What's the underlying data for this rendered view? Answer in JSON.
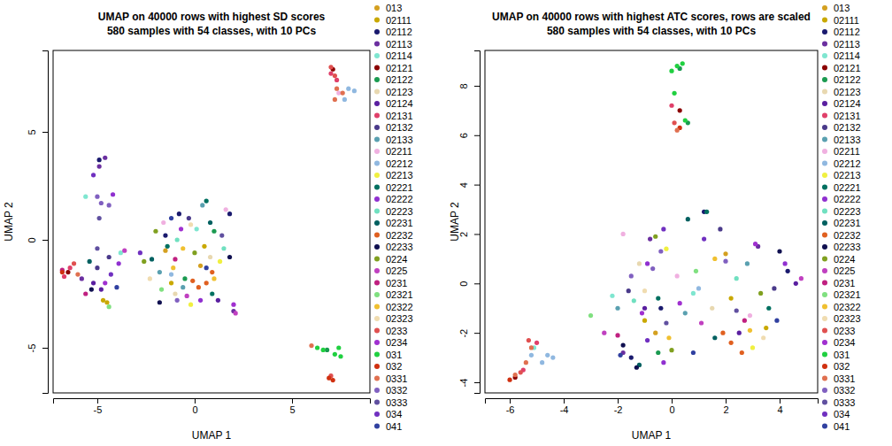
{
  "chart_data": [
    {
      "type": "scatter",
      "title": "UMAP on 40000 rows with highest SD scores",
      "subtitle": "580 samples with 54 classes, with 10 PCs",
      "x_label": "UMAP 1",
      "y_label": "UMAP 2",
      "xlim": [
        -7.27,
        9.0
      ],
      "ylim": [
        -7.09,
        8.77
      ],
      "xticks": [
        -5,
        0,
        5
      ],
      "yticks": [
        -5,
        0,
        5
      ],
      "series": [
        {
          "name": "013",
          "color": "#d4a020",
          "x": [
            -1.5,
            0.3
          ],
          "y": [
            -0.5,
            -1.2
          ]
        },
        {
          "name": "02111",
          "color": "#c9a800",
          "x": [
            -4.7,
            -4.5,
            -1.2,
            0.5
          ],
          "y": [
            -2.8,
            -2.9,
            -2.0,
            -0.3
          ]
        },
        {
          "name": "02112",
          "color": "#1a1a6e",
          "x": [
            -0.8,
            1.8,
            -1.5,
            -4.9
          ],
          "y": [
            1.2,
            1.2,
            0.2,
            3.7
          ]
        },
        {
          "name": "02113",
          "color": "#6b2fa0",
          "x": [
            -4.6,
            -4.9,
            2.0,
            -5.8
          ],
          "y": [
            3.8,
            3.4,
            -3.3,
            -1.8
          ]
        },
        {
          "name": "02114",
          "color": "#7fe6d0",
          "x": [
            -5.6,
            -3.8,
            0.1
          ],
          "y": [
            2.0,
            -0.6,
            0.5
          ]
        },
        {
          "name": "02121",
          "color": "#8b0000",
          "x": [
            7.1,
            -6.5
          ],
          "y": [
            7.9,
            -1.5
          ]
        },
        {
          "name": "02122",
          "color": "#1a9a50",
          "x": [
            6.8,
            -0.5,
            1.0
          ],
          "y": [
            -5.1,
            -1.8,
            0.4
          ]
        },
        {
          "name": "02123",
          "color": "#e8d8b0",
          "x": [
            0.8,
            -1.0
          ],
          "y": [
            -0.8,
            -2.5
          ]
        },
        {
          "name": "02124",
          "color": "#5a1fa0",
          "x": [
            -5.2,
            -4.8,
            1.2
          ],
          "y": [
            -2.0,
            -2.3,
            -2.8
          ]
        },
        {
          "name": "02131",
          "color": "#e0406a",
          "x": [
            7.0,
            7.3,
            -6.4,
            -6.7
          ],
          "y": [
            7.7,
            7.4,
            -1.3,
            -1.7
          ]
        },
        {
          "name": "02132",
          "color": "#4a3a8a",
          "x": [
            -4.4,
            -0.3,
            -5.0
          ],
          "y": [
            -0.8,
            1.0,
            -1.3
          ]
        },
        {
          "name": "02133",
          "color": "#5aa0b0",
          "x": [
            -1.8,
            -0.6,
            0.4
          ],
          "y": [
            -1.5,
            -2.2,
            1.6
          ]
        },
        {
          "name": "02211",
          "color": "#f0b0e0",
          "x": [
            -1.6,
            1.6,
            7.4
          ],
          "y": [
            0.8,
            1.4,
            6.8
          ]
        },
        {
          "name": "02212",
          "color": "#90b8e0",
          "x": [
            7.9,
            8.2,
            7.7,
            -1.2
          ],
          "y": [
            7.0,
            6.9,
            6.5,
            -1.6
          ]
        },
        {
          "name": "02213",
          "color": "#f0f040",
          "x": [
            -0.2,
            1.3
          ],
          "y": [
            -3.0,
            -1.0
          ]
        },
        {
          "name": "02221",
          "color": "#007060",
          "x": [
            -1.4,
            0.6,
            0.9
          ],
          "y": [
            -0.3,
            1.8,
            -2.5
          ]
        },
        {
          "name": "02222",
          "color": "#9030d0",
          "x": [
            -3.9,
            -4.2,
            0.3
          ],
          "y": [
            -1.1,
            2.1,
            -2.8
          ]
        },
        {
          "name": "02223",
          "color": "#70e0c0",
          "x": [
            -0.9,
            1.5
          ],
          "y": [
            0.0,
            -0.4
          ]
        },
        {
          "name": "02231",
          "color": "#006060",
          "x": [
            -2.2,
            0.8,
            -5.4
          ],
          "y": [
            -0.9,
            0.8,
            -1.0
          ]
        },
        {
          "name": "02232",
          "color": "#e06020",
          "x": [
            0.2,
            0.6,
            -0.1,
            0.9
          ],
          "y": [
            -2.2,
            -2.0,
            -1.9,
            -1.5
          ]
        },
        {
          "name": "02233",
          "color": "#101050",
          "x": [
            -1.8,
            1.8,
            -5.3
          ],
          "y": [
            -2.9,
            -0.8,
            -2.3
          ]
        },
        {
          "name": "0224",
          "color": "#80a020",
          "x": [
            -2.0,
            0.0,
            -2.6
          ],
          "y": [
            0.4,
            -0.6,
            -1.0
          ]
        },
        {
          "name": "0225",
          "color": "#c040c0",
          "x": [
            -0.4,
            2.1,
            -3.6
          ],
          "y": [
            -2.6,
            -3.4,
            -0.5
          ]
        },
        {
          "name": "0231",
          "color": "#c02080",
          "x": [
            -6.8,
            -1.0,
            -5.6
          ],
          "y": [
            -1.4,
            -0.9,
            -2.5
          ]
        },
        {
          "name": "02321",
          "color": "#80e080",
          "x": [
            -1.7,
            -4.4
          ],
          "y": [
            -2.3,
            -3.1
          ]
        },
        {
          "name": "02322",
          "color": "#f0c030",
          "x": [
            -1.1,
            -0.6,
            1.0
          ],
          "y": [
            -1.3,
            -0.4,
            -1.8
          ]
        },
        {
          "name": "02323",
          "color": "#f0dcb0",
          "x": [
            -0.2,
            -2.3
          ],
          "y": [
            0.7,
            -1.8
          ]
        },
        {
          "name": "0233",
          "color": "#e05050",
          "x": [
            7.0,
            7.2,
            -6.2,
            7.0
          ],
          "y": [
            8.0,
            7.6,
            -1.1,
            -6.3
          ]
        },
        {
          "name": "0234",
          "color": "#a030d0",
          "x": [
            -0.7,
            2.0,
            -4.6
          ],
          "y": [
            0.5,
            -3.0,
            -2.0
          ]
        },
        {
          "name": "031",
          "color": "#20d040",
          "x": [
            7.2,
            7.5,
            6.3,
            6.6,
            7.4
          ],
          "y": [
            -5.3,
            -5.4,
            -5.0,
            -5.1,
            -5.0
          ]
        },
        {
          "name": "032",
          "color": "#d03010",
          "x": [
            7.1,
            6.9,
            -6.8
          ],
          "y": [
            -6.5,
            -6.4,
            -1.5
          ]
        },
        {
          "name": "0331",
          "color": "#e07050",
          "x": [
            7.3,
            7.6,
            7.2,
            6.0,
            -6.0
          ],
          "y": [
            7.0,
            6.8,
            6.5,
            -4.9,
            -1.6
          ]
        },
        {
          "name": "0332",
          "color": "#8060c0",
          "x": [
            -4.8,
            -4.4,
            -5.0,
            -0.9
          ],
          "y": [
            1.7,
            1.6,
            2.0,
            -2.8
          ]
        },
        {
          "name": "0333",
          "color": "#6050a0",
          "x": [
            -4.9,
            -5.0,
            1.4
          ],
          "y": [
            1.0,
            -0.4,
            0.2
          ]
        },
        {
          "name": "034",
          "color": "#7030c0",
          "x": [
            -5.2,
            -4.3,
            -2.8
          ],
          "y": [
            3.0,
            -1.6,
            -0.6
          ]
        },
        {
          "name": "041",
          "color": "#3040a0",
          "x": [
            -1.2,
            0.6,
            -4.0
          ],
          "y": [
            1.0,
            -1.3,
            -2.2
          ]
        }
      ]
    },
    {
      "type": "scatter",
      "title": "UMAP on 40000 rows with highest ATC scores, rows are scaled",
      "subtitle": "580 samples with 54 classes, with 10 PCs",
      "x_label": "UMAP 1",
      "y_label": "UMAP 2",
      "xlim": [
        -6.92,
        5.41
      ],
      "ylim": [
        -4.43,
        9.43
      ],
      "xticks": [
        -6,
        -4,
        -2,
        0,
        2,
        4
      ],
      "yticks": [
        -4,
        -2,
        0,
        2,
        4,
        6,
        8
      ],
      "series": [
        {
          "name": "013",
          "color": "#d4a020",
          "x": [
            2.0,
            -0.6
          ],
          "y": [
            1.2,
            -2.0
          ]
        },
        {
          "name": "02111",
          "color": "#c9a800",
          "x": [
            3.5,
            -1.0,
            2.2
          ],
          "y": [
            -1.8,
            -1.5,
            -0.6
          ]
        },
        {
          "name": "02112",
          "color": "#1a1a6e",
          "x": [
            -1.5,
            1.2,
            4.3,
            -0.4
          ],
          "y": [
            -3.0,
            2.9,
            0.5,
            -1.0
          ]
        },
        {
          "name": "02113",
          "color": "#6b2fa0",
          "x": [
            -0.8,
            3.2,
            -1.8
          ],
          "y": [
            1.8,
            1.5,
            -2.8
          ]
        },
        {
          "name": "02114",
          "color": "#7fe6d0",
          "x": [
            -2.2,
            0.8,
            -5.1
          ],
          "y": [
            -0.5,
            -0.4,
            -2.6
          ]
        },
        {
          "name": "02121",
          "color": "#8b0000",
          "x": [
            0.3,
            -5.8
          ],
          "y": [
            7.0,
            -3.8
          ]
        },
        {
          "name": "02122",
          "color": "#1a9a50",
          "x": [
            0.3,
            0.6,
            -0.5
          ],
          "y": [
            8.7,
            6.5,
            -2.8
          ]
        },
        {
          "name": "02123",
          "color": "#e8d8b0",
          "x": [
            1.5,
            -1.2
          ],
          "y": [
            -1.0,
            0.8
          ]
        },
        {
          "name": "02124",
          "color": "#5a1fa0",
          "x": [
            -1.0,
            2.5,
            4.6
          ],
          "y": [
            -1.0,
            -2.0,
            0.0
          ]
        },
        {
          "name": "02131",
          "color": "#e0406a",
          "x": [
            0.0,
            -5.5,
            -5.0
          ],
          "y": [
            7.2,
            -3.5,
            -2.4
          ]
        },
        {
          "name": "02132",
          "color": "#4a3a8a",
          "x": [
            -1.6,
            1.8,
            3.8
          ],
          "y": [
            -0.3,
            2.2,
            -0.2
          ]
        },
        {
          "name": "02133",
          "color": "#5aa0b0",
          "x": [
            -2.0,
            0.5,
            2.8
          ],
          "y": [
            -1.0,
            -1.2,
            0.8
          ]
        },
        {
          "name": "02211",
          "color": "#f0b0e0",
          "x": [
            -1.8,
            2.9,
            0.2
          ],
          "y": [
            2.0,
            -1.3,
            0.3
          ]
        },
        {
          "name": "02212",
          "color": "#90b8e0",
          "x": [
            -4.4,
            -4.6,
            -4.8,
            -5.2,
            1.0
          ],
          "y": [
            -3.0,
            -2.9,
            -3.2,
            -2.9,
            -0.2
          ]
        },
        {
          "name": "02213",
          "color": "#f0f040",
          "x": [
            3.0,
            -0.2
          ],
          "y": [
            -2.6,
            1.4
          ]
        },
        {
          "name": "02221",
          "color": "#007060",
          "x": [
            1.3,
            -0.5,
            3.6
          ],
          "y": [
            2.9,
            -0.6,
            -1.0
          ]
        },
        {
          "name": "02222",
          "color": "#9030d0",
          "x": [
            -0.9,
            4.2,
            -0.3
          ],
          "y": [
            0.8,
            0.8,
            -3.2
          ]
        },
        {
          "name": "02223",
          "color": "#70e0c0",
          "x": [
            -1.4,
            2.4
          ],
          "y": [
            -0.7,
            0.2
          ]
        },
        {
          "name": "02231",
          "color": "#006060",
          "x": [
            0.6,
            -1.2,
            1.6
          ],
          "y": [
            2.6,
            -3.3,
            -2.2
          ]
        },
        {
          "name": "02232",
          "color": "#e06020",
          "x": [
            2.2,
            2.6,
            1.9
          ],
          "y": [
            -2.4,
            -2.8,
            -2.0
          ]
        },
        {
          "name": "02233",
          "color": "#101050",
          "x": [
            -1.8,
            -1.3,
            4.0
          ],
          "y": [
            -2.5,
            -3.4,
            1.3
          ]
        },
        {
          "name": "0224",
          "color": "#80a020",
          "x": [
            0.0,
            -0.6,
            3.3
          ],
          "y": [
            -2.7,
            1.9,
            -0.4
          ]
        },
        {
          "name": "0225",
          "color": "#c040c0",
          "x": [
            -2.5,
            1.1,
            4.8
          ],
          "y": [
            -2.0,
            -1.6,
            0.2
          ]
        },
        {
          "name": "0231",
          "color": "#c02080",
          "x": [
            -2.0,
            2.7
          ],
          "y": [
            -2.1,
            -1.5
          ]
        },
        {
          "name": "02321",
          "color": "#80e080",
          "x": [
            -3.0,
            0.9
          ],
          "y": [
            -1.3,
            0.5
          ]
        },
        {
          "name": "02322",
          "color": "#f0c030",
          "x": [
            2.9,
            -0.1,
            1.6
          ],
          "y": [
            -1.9,
            -2.2,
            1.0
          ]
        },
        {
          "name": "02323",
          "color": "#f0dcb0",
          "x": [
            3.4,
            -1.0
          ],
          "y": [
            -2.2,
            -0.3
          ]
        },
        {
          "name": "0233",
          "color": "#e05050",
          "x": [
            0.1,
            -5.6,
            -5.3
          ],
          "y": [
            6.5,
            -3.6,
            -2.3
          ]
        },
        {
          "name": "0234",
          "color": "#a030d0",
          "x": [
            -1.1,
            3.1,
            0.3
          ],
          "y": [
            -1.2,
            1.6,
            -0.8
          ]
        },
        {
          "name": "031",
          "color": "#20d040",
          "x": [
            0.2,
            0.4,
            0.0,
            0.1,
            0.5
          ],
          "y": [
            8.8,
            8.9,
            8.6,
            7.7,
            6.6
          ]
        },
        {
          "name": "032",
          "color": "#d03010",
          "x": [
            0.3,
            -6.0
          ],
          "y": [
            6.3,
            -3.9
          ]
        },
        {
          "name": "0331",
          "color": "#e07050",
          "x": [
            -5.8,
            -5.4,
            -5.2,
            0.2
          ],
          "y": [
            -3.7,
            -3.2,
            -2.6,
            6.2
          ]
        },
        {
          "name": "0332",
          "color": "#8060c0",
          "x": [
            -0.7,
            -0.4,
            2.0,
            -1.5
          ],
          "y": [
            0.6,
            1.3,
            0.9,
            0.3
          ]
        },
        {
          "name": "0333",
          "color": "#6050a0",
          "x": [
            -0.2,
            2.4
          ],
          "y": [
            -1.6,
            -1.1
          ]
        },
        {
          "name": "034",
          "color": "#7030c0",
          "x": [
            -0.3,
            1.2,
            -0.9
          ],
          "y": [
            2.2,
            1.8,
            -2.3
          ]
        },
        {
          "name": "041",
          "color": "#3040a0",
          "x": [
            -1.9,
            0.8,
            3.9
          ],
          "y": [
            -2.9,
            -2.8,
            -1.5
          ]
        }
      ]
    }
  ]
}
